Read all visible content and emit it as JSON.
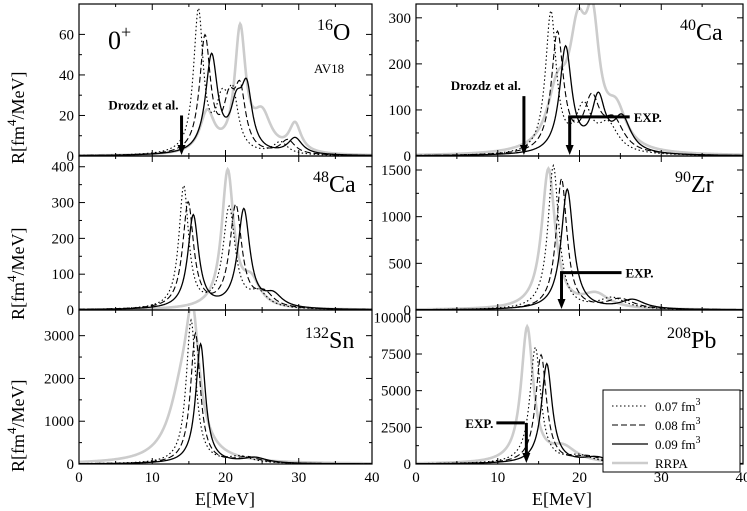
{
  "figure": {
    "ylabel": "R[fm",
    "ylabel_sup": "4",
    "ylabel_tail": "/MeV]",
    "xlabel": "E[MeV]",
    "multipole": "0",
    "multipole_sup": "+",
    "interaction": "AV18",
    "drozdz_label": "Drozdz et al.",
    "exp_label": "EXP."
  },
  "legend": [
    {
      "label": "0.07 fm",
      "sup": "3",
      "style": "dotted",
      "color": "#000000"
    },
    {
      "label": "0.08 fm",
      "sup": "3",
      "style": "dashed",
      "color": "#000000"
    },
    {
      "label": "0.09 fm",
      "sup": "3",
      "style": "solid",
      "color": "#000000"
    },
    {
      "label": "RRPA",
      "sup": "",
      "style": "solid",
      "color": "#cccccc"
    }
  ],
  "chart_data": [
    {
      "type": "line",
      "id": "o16",
      "nucleus_mass": "16",
      "nucleus_symbol": "O",
      "xlim": [
        0,
        40
      ],
      "ylim": [
        0,
        75
      ],
      "x_ticks": [
        "0",
        "10",
        "20",
        "30",
        "40"
      ],
      "y_ticks": [
        "0",
        "20",
        "40",
        "60"
      ],
      "series": [
        {
          "name": "0.07 fm3",
          "peaks": [
            [
              16.3,
              70,
              0.8
            ],
            [
              19.5,
              22,
              1.0
            ],
            [
              21,
              26,
              0.9
            ],
            [
              27.5,
              6,
              1.2
            ]
          ]
        },
        {
          "name": "0.08 fm3",
          "peaks": [
            [
              17.2,
              57,
              0.9
            ],
            [
              20.5,
              22,
              1.0
            ],
            [
              22,
              28,
              0.9
            ],
            [
              28.5,
              7,
              1.2
            ]
          ]
        },
        {
          "name": "0.09 fm3",
          "peaks": [
            [
              18.1,
              48,
              1.0
            ],
            [
              21.5,
              20,
              1.0
            ],
            [
              22.9,
              29,
              0.9
            ],
            [
              29.5,
              8,
              1.2
            ]
          ]
        },
        {
          "name": "RRPA",
          "peaks": [
            [
              17.5,
              20,
              1.2
            ],
            [
              22,
              60,
              0.9
            ],
            [
              25,
              18,
              1.5
            ],
            [
              29.5,
              14,
              1.0
            ]
          ]
        }
      ],
      "markers": [
        {
          "kind": "drozdz",
          "energy": 14,
          "value": 20
        }
      ]
    },
    {
      "type": "line",
      "id": "ca40",
      "nucleus_mass": "40",
      "nucleus_symbol": "Ca",
      "xlim": [
        0,
        40
      ],
      "ylim": [
        0,
        330
      ],
      "x_ticks": [
        "0",
        "10",
        "20",
        "30",
        "40"
      ],
      "y_ticks": [
        "0",
        "100",
        "200",
        "300"
      ],
      "series": [
        {
          "name": "0.07 fm3",
          "peaks": [
            [
              16.5,
              305,
              0.8
            ],
            [
              20.5,
              95,
              1.2
            ],
            [
              23.5,
              60,
              1.5
            ]
          ]
        },
        {
          "name": "0.08 fm3",
          "peaks": [
            [
              17.3,
              260,
              0.9
            ],
            [
              21.5,
              110,
              1.2
            ],
            [
              24.2,
              65,
              1.5
            ]
          ]
        },
        {
          "name": "0.09 fm3",
          "peaks": [
            [
              18.3,
              230,
              0.9
            ],
            [
              22.3,
              115,
              1.0
            ],
            [
              25.2,
              75,
              1.3
            ]
          ]
        },
        {
          "name": "RRPA",
          "peaks": [
            [
              17.3,
              120,
              1.5
            ],
            [
              19.8,
              225,
              1.3
            ],
            [
              21.6,
              230,
              1.0
            ],
            [
              24.5,
              80,
              1.5
            ]
          ]
        }
      ],
      "markers": [
        {
          "kind": "drozdz",
          "energy": 13.2,
          "value": 130
        },
        {
          "kind": "exp",
          "energy": 18.8,
          "value": 85
        }
      ]
    },
    {
      "type": "line",
      "id": "ca48",
      "nucleus_mass": "48",
      "nucleus_symbol": "Ca",
      "xlim": [
        0,
        40
      ],
      "ylim": [
        0,
        430
      ],
      "x_ticks": [
        "0",
        "10",
        "20",
        "30",
        "40"
      ],
      "y_ticks": [
        "0",
        "100",
        "200",
        "300",
        "400"
      ],
      "series": [
        {
          "name": "0.07 fm3",
          "peaks": [
            [
              14.3,
              340,
              0.8
            ],
            [
              20.5,
              280,
              1.0
            ],
            [
              24.5,
              40,
              1.5
            ]
          ]
        },
        {
          "name": "0.08 fm3",
          "peaks": [
            [
              14.9,
              295,
              0.9
            ],
            [
              21.4,
              285,
              1.0
            ],
            [
              25.3,
              38,
              1.5
            ]
          ]
        },
        {
          "name": "0.09 fm3",
          "peaks": [
            [
              15.6,
              260,
              0.9
            ],
            [
              22.5,
              275,
              1.0
            ],
            [
              26.5,
              35,
              1.5
            ]
          ]
        },
        {
          "name": "RRPA",
          "peaks": [
            [
              20.3,
              380,
              1.0
            ],
            [
              23.5,
              70,
              1.5
            ]
          ]
        }
      ],
      "markers": []
    },
    {
      "type": "line",
      "id": "zr90",
      "nucleus_mass": "90",
      "nucleus_symbol": "Zr",
      "xlim": [
        0,
        40
      ],
      "ylim": [
        0,
        1650
      ],
      "x_ticks": [
        "0",
        "10",
        "20",
        "30",
        "40"
      ],
      "y_ticks": [
        "0",
        "500",
        "1000",
        "1500"
      ],
      "series": [
        {
          "name": "0.07 fm3",
          "peaks": [
            [
              16.8,
              1540,
              0.8
            ],
            [
              24,
              120,
              2.0
            ]
          ]
        },
        {
          "name": "0.08 fm3",
          "peaks": [
            [
              17.8,
              1400,
              0.8
            ],
            [
              25,
              110,
              2.0
            ]
          ]
        },
        {
          "name": "0.09 fm3",
          "peaks": [
            [
              18.5,
              1290,
              0.9
            ],
            [
              26.5,
              100,
              1.8
            ]
          ]
        },
        {
          "name": "RRPA",
          "peaks": [
            [
              16.2,
              1500,
              1.0
            ],
            [
              22,
              150,
              2.0
            ]
          ]
        }
      ],
      "markers": [
        {
          "kind": "exp",
          "energy": 17.8,
          "value": 400
        }
      ]
    },
    {
      "type": "line",
      "id": "sn132",
      "nucleus_mass": "132",
      "nucleus_symbol": "Sn",
      "xlim": [
        0,
        40
      ],
      "ylim": [
        0,
        3600
      ],
      "x_ticks": [
        "0",
        "10",
        "20",
        "30",
        "40"
      ],
      "y_ticks": [
        "0",
        "1000",
        "2000",
        "3000"
      ],
      "series": [
        {
          "name": "0.07 fm3",
          "peaks": [
            [
              15.3,
              3350,
              0.8
            ],
            [
              22,
              150,
              2.0
            ]
          ]
        },
        {
          "name": "0.08 fm3",
          "peaks": [
            [
              15.9,
              3050,
              0.8
            ],
            [
              23,
              140,
              2.0
            ]
          ]
        },
        {
          "name": "0.09 fm3",
          "peaks": [
            [
              16.6,
              2800,
              0.8
            ],
            [
              24,
              130,
              2.0
            ]
          ]
        },
        {
          "name": "RRPA",
          "peaks": [
            [
              14.1,
              1500,
              2.2
            ],
            [
              15.5,
              2700,
              1.1
            ]
          ]
        }
      ],
      "markers": []
    },
    {
      "type": "line",
      "id": "pb208",
      "nucleus_mass": "208",
      "nucleus_symbol": "Pb",
      "xlim": [
        0,
        40
      ],
      "ylim": [
        0,
        10500
      ],
      "x_ticks": [
        "0",
        "10",
        "20",
        "30",
        "40"
      ],
      "y_ticks": [
        "0",
        "2500",
        "5000",
        "7500",
        "10000"
      ],
      "series": [
        {
          "name": "0.07 fm3",
          "peaks": [
            [
              14.6,
              7900,
              0.8
            ],
            [
              20,
              500,
              2.0
            ]
          ]
        },
        {
          "name": "0.08 fm3",
          "peaks": [
            [
              15.3,
              7400,
              0.8
            ],
            [
              21,
              450,
              2.0
            ]
          ]
        },
        {
          "name": "0.09 fm3",
          "peaks": [
            [
              16,
              6800,
              0.8
            ],
            [
              22,
              400,
              2.0
            ]
          ]
        },
        {
          "name": "RRPA",
          "peaks": [
            [
              13.6,
              9200,
              0.9
            ],
            [
              18,
              1000,
              2.0
            ]
          ]
        }
      ],
      "markers": [
        {
          "kind": "exp",
          "energy": 13.5,
          "value": 2800
        }
      ]
    }
  ]
}
